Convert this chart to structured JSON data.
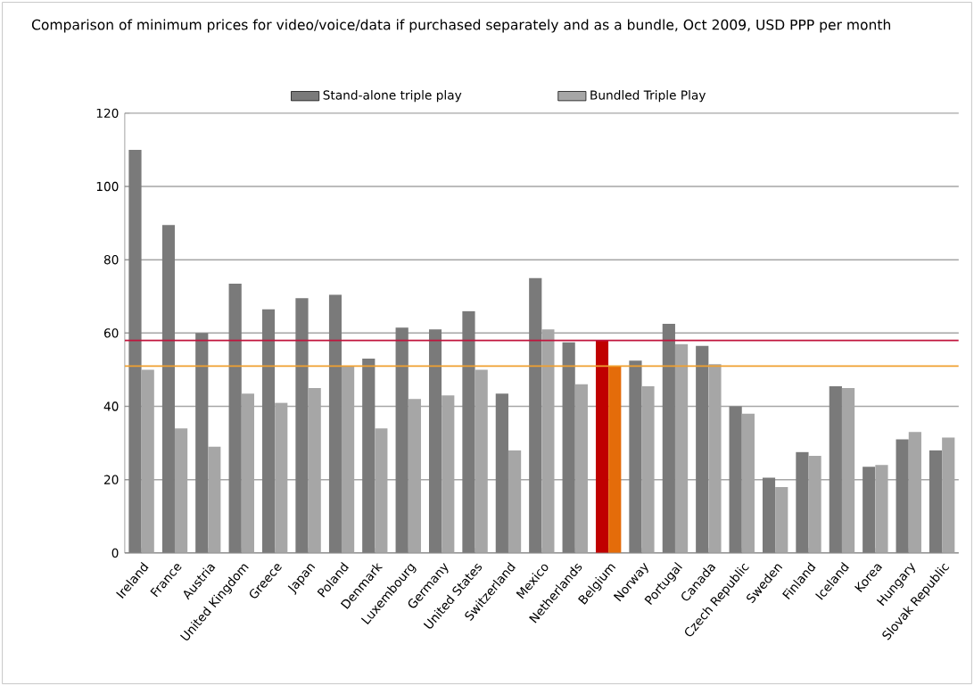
{
  "chart_data": {
    "type": "bar",
    "title": "Comparison of minimum prices for video/voice/data if purchased separately and as a bundle, Oct 2009,  USD PPP per month",
    "categories": [
      "Ireland",
      "France",
      "Austria",
      "United Kingdom",
      "Greece",
      "Japan",
      "Poland",
      "Denmark",
      "Luxembourg",
      "Germany",
      "United States",
      "Switzerland",
      "Mexico",
      "Netherlands",
      "Belgium",
      "Norway",
      "Portugal",
      "Canada",
      "Czech Republic",
      "Sweden",
      "Finland",
      "Iceland",
      "Korea",
      "Hungary",
      "Slovak Republic"
    ],
    "series": [
      {
        "name": "Stand-alone triple play",
        "color": "#7a7a7a",
        "colors": [
          "#7a7a7a",
          "#7a7a7a",
          "#7a7a7a",
          "#7a7a7a",
          "#7a7a7a",
          "#7a7a7a",
          "#7a7a7a",
          "#7a7a7a",
          "#7a7a7a",
          "#7a7a7a",
          "#7a7a7a",
          "#7a7a7a",
          "#7a7a7a",
          "#7a7a7a",
          "#c00000",
          "#7a7a7a",
          "#7a7a7a",
          "#7a7a7a",
          "#7a7a7a",
          "#7a7a7a",
          "#7a7a7a",
          "#7a7a7a",
          "#7a7a7a",
          "#7a7a7a",
          "#7a7a7a"
        ],
        "values": [
          110,
          89.5,
          60,
          73.5,
          66.5,
          69.5,
          70.5,
          53,
          61.5,
          61,
          66,
          43.5,
          75,
          57.5,
          58,
          52.5,
          62.5,
          56.5,
          40,
          20.5,
          27.5,
          45.5,
          23.5,
          31,
          28
        ]
      },
      {
        "name": "Bundled Triple Play",
        "color": "#a6a6a6",
        "colors": [
          "#a6a6a6",
          "#a6a6a6",
          "#a6a6a6",
          "#a6a6a6",
          "#a6a6a6",
          "#a6a6a6",
          "#a6a6a6",
          "#a6a6a6",
          "#a6a6a6",
          "#a6a6a6",
          "#a6a6a6",
          "#a6a6a6",
          "#a6a6a6",
          "#a6a6a6",
          "#e46c0a",
          "#a6a6a6",
          "#a6a6a6",
          "#a6a6a6",
          "#a6a6a6",
          "#a6a6a6",
          "#a6a6a6",
          "#a6a6a6",
          "#a6a6a6",
          "#a6a6a6",
          "#a6a6a6"
        ],
        "values": [
          50,
          34,
          29,
          43.5,
          41,
          45,
          51,
          34,
          42,
          43,
          50,
          28,
          61,
          46,
          51,
          45.5,
          57,
          51.5,
          38,
          18,
          26.5,
          45,
          24,
          33,
          31.5
        ]
      }
    ],
    "ref_lines": [
      {
        "axis": "y",
        "value": 58,
        "color": "#c0143c"
      },
      {
        "axis": "y",
        "value": 51,
        "color": "#f0a030"
      }
    ],
    "ylim": [
      0,
      120
    ],
    "yticks": [
      0,
      20,
      40,
      60,
      80,
      100,
      120
    ],
    "grid": "y",
    "legend": "top"
  }
}
